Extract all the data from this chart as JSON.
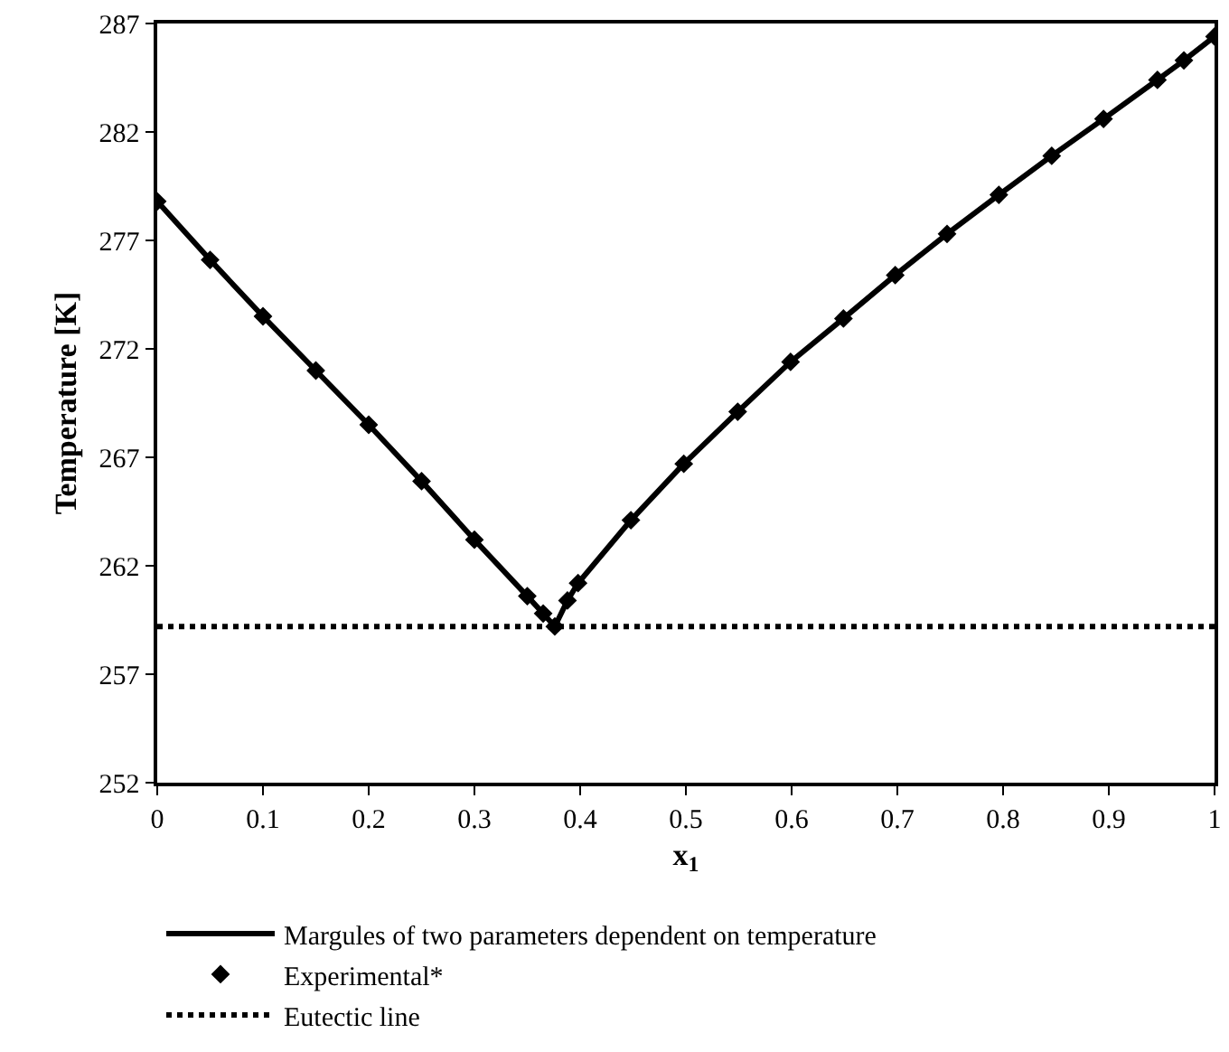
{
  "chart_data": {
    "type": "line",
    "xlabel": "x$_{1}$",
    "ylabel": "Temperature [K]",
    "xlim": [
      0,
      1
    ],
    "xticks": [
      0,
      0.1,
      0.2,
      0.3,
      0.4,
      0.5,
      0.6,
      0.7,
      0.8,
      0.9,
      1
    ],
    "ylim": [
      252,
      287
    ],
    "yticks": [
      252,
      257,
      262,
      267,
      272,
      277,
      282,
      287
    ],
    "legend": "bottom",
    "series": [
      {
        "name": "Margules of two parameters dependent on temperature",
        "color": "#000000",
        "marker": "none",
        "line_style": "solid",
        "x": [
          0,
          0.05,
          0.1,
          0.15,
          0.2,
          0.25,
          0.3,
          0.35,
          0.365,
          0.376,
          0.388,
          0.398,
          0.448,
          0.498,
          0.549,
          0.599,
          0.649,
          0.698,
          0.747,
          0.796,
          0.846,
          0.895,
          0.946,
          0.971,
          1.0
        ],
        "values": [
          278.8,
          276.1,
          273.5,
          271.0,
          268.5,
          265.9,
          263.2,
          260.6,
          259.8,
          259.2,
          260.4,
          261.2,
          264.1,
          266.7,
          269.1,
          271.4,
          273.4,
          275.4,
          277.3,
          279.1,
          280.9,
          282.6,
          284.4,
          285.3,
          286.4
        ]
      },
      {
        "name": "Experimental*",
        "type": "scatter",
        "color": "#000000",
        "marker": "diamond",
        "x": [
          0,
          0.05,
          0.1,
          0.15,
          0.2,
          0.25,
          0.3,
          0.35,
          0.365,
          0.376,
          0.388,
          0.398,
          0.448,
          0.498,
          0.549,
          0.599,
          0.649,
          0.698,
          0.747,
          0.796,
          0.846,
          0.895,
          0.946,
          0.971,
          1.0
        ],
        "values": [
          278.8,
          276.1,
          273.5,
          271.0,
          268.5,
          265.9,
          263.2,
          260.6,
          259.8,
          259.2,
          260.4,
          261.2,
          264.1,
          266.7,
          269.1,
          271.4,
          273.4,
          275.4,
          277.3,
          279.1,
          280.9,
          282.6,
          284.4,
          285.3,
          286.4
        ]
      }
    ],
    "ref_lines": [
      {
        "axis": "y",
        "value": 259.2,
        "label": "Eutectic line",
        "color": "#000000",
        "line_style": "dotted"
      }
    ]
  }
}
